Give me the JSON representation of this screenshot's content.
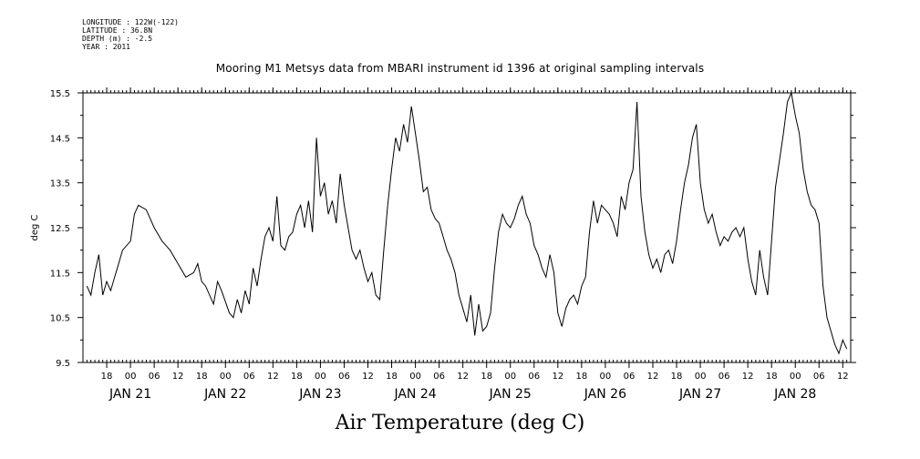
{
  "header": {
    "longitude": "LONGITUDE : 122W(-122)",
    "latitude": "LATITUDE : 36.8N",
    "depth": "DEPTH (m) : -2.5",
    "year": "YEAR : 2011"
  },
  "chart_title": "Mooring M1 Metsys data from MBARI instrument id 1396 at original sampling intervals",
  "footer_title": "Air Temperature (deg C)",
  "chart_data": {
    "type": "line",
    "title": "Mooring M1 Metsys data from MBARI instrument id 1396 at original sampling intervals",
    "xlabel": "Air Temperature (deg C)",
    "ylabel": "deg C",
    "ylim": [
      9.5,
      15.5
    ],
    "y_ticks": [
      "9.5",
      "10.5",
      "11.5",
      "12.5",
      "13.5",
      "14.5",
      "15.5"
    ],
    "x_start": "JAN 20 2011 12:00",
    "x_end": "JAN 28 2011 14:00",
    "hour_ticks": [
      {
        "t": "JAN 20 18:00",
        "label": "18"
      },
      {
        "t": "JAN 21 00:00",
        "label": "00"
      },
      {
        "t": "JAN 21 06:00",
        "label": "06"
      },
      {
        "t": "JAN 21 12:00",
        "label": "12"
      },
      {
        "t": "JAN 21 18:00",
        "label": "18"
      },
      {
        "t": "JAN 22 00:00",
        "label": "00"
      },
      {
        "t": "JAN 22 06:00",
        "label": "06"
      },
      {
        "t": "JAN 22 12:00",
        "label": "12"
      },
      {
        "t": "JAN 22 18:00",
        "label": "18"
      },
      {
        "t": "JAN 23 00:00",
        "label": "00"
      },
      {
        "t": "JAN 23 06:00",
        "label": "06"
      },
      {
        "t": "JAN 23 12:00",
        "label": "12"
      },
      {
        "t": "JAN 23 18:00",
        "label": "18"
      },
      {
        "t": "JAN 24 00:00",
        "label": "00"
      },
      {
        "t": "JAN 24 06:00",
        "label": "06"
      },
      {
        "t": "JAN 24 12:00",
        "label": "12"
      },
      {
        "t": "JAN 24 18:00",
        "label": "18"
      },
      {
        "t": "JAN 25 00:00",
        "label": "00"
      },
      {
        "t": "JAN 25 06:00",
        "label": "06"
      },
      {
        "t": "JAN 25 12:00",
        "label": "12"
      },
      {
        "t": "JAN 25 18:00",
        "label": "18"
      },
      {
        "t": "JAN 26 00:00",
        "label": "00"
      },
      {
        "t": "JAN 26 06:00",
        "label": "06"
      },
      {
        "t": "JAN 26 12:00",
        "label": "12"
      },
      {
        "t": "JAN 26 18:00",
        "label": "18"
      },
      {
        "t": "JAN 27 00:00",
        "label": "00"
      },
      {
        "t": "JAN 27 06:00",
        "label": "06"
      },
      {
        "t": "JAN 27 12:00",
        "label": "12"
      },
      {
        "t": "JAN 27 18:00",
        "label": "18"
      },
      {
        "t": "JAN 28 00:00",
        "label": "00"
      },
      {
        "t": "JAN 28 06:00",
        "label": "06"
      },
      {
        "t": "JAN 28 12:00",
        "label": "12"
      }
    ],
    "day_labels": [
      {
        "t": "JAN 21 00:00",
        "label": "JAN 21"
      },
      {
        "t": "JAN 22 00:00",
        "label": "JAN 22"
      },
      {
        "t": "JAN 23 00:00",
        "label": "JAN 23"
      },
      {
        "t": "JAN 24 00:00",
        "label": "JAN 24"
      },
      {
        "t": "JAN 25 00:00",
        "label": "JAN 25"
      },
      {
        "t": "JAN 26 00:00",
        "label": "JAN 26"
      },
      {
        "t": "JAN 27 00:00",
        "label": "JAN 27"
      },
      {
        "t": "JAN 28 00:00",
        "label": "JAN 28"
      }
    ],
    "series": [
      {
        "values": [
          [
            "JAN 20 13:00",
            11.2
          ],
          [
            "JAN 20 14:00",
            11.0
          ],
          [
            "JAN 20 15:00",
            11.5
          ],
          [
            "JAN 20 16:00",
            11.9
          ],
          [
            "JAN 20 17:00",
            11.0
          ],
          [
            "JAN 20 18:00",
            11.3
          ],
          [
            "JAN 20 19:00",
            11.1
          ],
          [
            "JAN 20 21:00",
            11.7
          ],
          [
            "JAN 20 22:00",
            12.0
          ],
          [
            "JAN 21 00:00",
            12.2
          ],
          [
            "JAN 21 01:00",
            12.8
          ],
          [
            "JAN 21 02:00",
            13.0
          ],
          [
            "JAN 21 04:00",
            12.9
          ],
          [
            "JAN 21 06:00",
            12.5
          ],
          [
            "JAN 21 08:00",
            12.2
          ],
          [
            "JAN 21 10:00",
            12.0
          ],
          [
            "JAN 21 12:00",
            11.7
          ],
          [
            "JAN 21 14:00",
            11.4
          ],
          [
            "JAN 21 16:00",
            11.5
          ],
          [
            "JAN 21 17:00",
            11.7
          ],
          [
            "JAN 21 18:00",
            11.3
          ],
          [
            "JAN 21 19:00",
            11.2
          ],
          [
            "JAN 21 21:00",
            10.8
          ],
          [
            "JAN 21 22:00",
            11.3
          ],
          [
            "JAN 21 23:00",
            11.1
          ],
          [
            "JAN 22 01:00",
            10.6
          ],
          [
            "JAN 22 02:00",
            10.5
          ],
          [
            "JAN 22 03:00",
            10.9
          ],
          [
            "JAN 22 04:00",
            10.6
          ],
          [
            "JAN 22 05:00",
            11.1
          ],
          [
            "JAN 22 06:00",
            10.8
          ],
          [
            "JAN 22 07:00",
            11.6
          ],
          [
            "JAN 22 08:00",
            11.2
          ],
          [
            "JAN 22 09:00",
            11.8
          ],
          [
            "JAN 22 10:00",
            12.3
          ],
          [
            "JAN 22 11:00",
            12.5
          ],
          [
            "JAN 22 12:00",
            12.2
          ],
          [
            "JAN 22 13:00",
            13.2
          ],
          [
            "JAN 22 14:00",
            12.1
          ],
          [
            "JAN 22 15:00",
            12.0
          ],
          [
            "JAN 22 16:00",
            12.3
          ],
          [
            "JAN 22 17:00",
            12.4
          ],
          [
            "JAN 22 18:00",
            12.8
          ],
          [
            "JAN 22 19:00",
            13.0
          ],
          [
            "JAN 22 20:00",
            12.5
          ],
          [
            "JAN 22 21:00",
            13.1
          ],
          [
            "JAN 22 22:00",
            12.4
          ],
          [
            "JAN 22 23:00",
            14.5
          ],
          [
            "JAN 23 00:00",
            13.2
          ],
          [
            "JAN 23 01:00",
            13.5
          ],
          [
            "JAN 23 02:00",
            12.8
          ],
          [
            "JAN 23 03:00",
            13.1
          ],
          [
            "JAN 23 04:00",
            12.6
          ],
          [
            "JAN 23 05:00",
            13.7
          ],
          [
            "JAN 23 06:00",
            13.0
          ],
          [
            "JAN 23 07:00",
            12.5
          ],
          [
            "JAN 23 08:00",
            12.0
          ],
          [
            "JAN 23 09:00",
            11.8
          ],
          [
            "JAN 23 10:00",
            12.0
          ],
          [
            "JAN 23 11:00",
            11.6
          ],
          [
            "JAN 23 12:00",
            11.3
          ],
          [
            "JAN 23 13:00",
            11.5
          ],
          [
            "JAN 23 14:00",
            11.0
          ],
          [
            "JAN 23 15:00",
            10.9
          ],
          [
            "JAN 23 16:00",
            12.0
          ],
          [
            "JAN 23 17:00",
            13.0
          ],
          [
            "JAN 23 18:00",
            13.8
          ],
          [
            "JAN 23 19:00",
            14.5
          ],
          [
            "JAN 23 20:00",
            14.2
          ],
          [
            "JAN 23 21:00",
            14.8
          ],
          [
            "JAN 23 22:00",
            14.4
          ],
          [
            "JAN 23 23:00",
            15.2
          ],
          [
            "JAN 24 00:00",
            14.6
          ],
          [
            "JAN 24 01:00",
            14.0
          ],
          [
            "JAN 24 02:00",
            13.3
          ],
          [
            "JAN 24 03:00",
            13.4
          ],
          [
            "JAN 24 04:00",
            12.9
          ],
          [
            "JAN 24 05:00",
            12.7
          ],
          [
            "JAN 24 06:00",
            12.6
          ],
          [
            "JAN 24 07:00",
            12.3
          ],
          [
            "JAN 24 08:00",
            12.0
          ],
          [
            "JAN 24 09:00",
            11.8
          ],
          [
            "JAN 24 10:00",
            11.5
          ],
          [
            "JAN 24 11:00",
            11.0
          ],
          [
            "JAN 24 12:00",
            10.7
          ],
          [
            "JAN 24 13:00",
            10.4
          ],
          [
            "JAN 24 14:00",
            11.0
          ],
          [
            "JAN 24 15:00",
            10.1
          ],
          [
            "JAN 24 16:00",
            10.8
          ],
          [
            "JAN 24 17:00",
            10.2
          ],
          [
            "JAN 24 18:00",
            10.3
          ],
          [
            "JAN 24 19:00",
            10.6
          ],
          [
            "JAN 24 20:00",
            11.6
          ],
          [
            "JAN 24 21:00",
            12.4
          ],
          [
            "JAN 24 22:00",
            12.8
          ],
          [
            "JAN 24 23:00",
            12.6
          ],
          [
            "JAN 25 00:00",
            12.5
          ],
          [
            "JAN 25 01:00",
            12.7
          ],
          [
            "JAN 25 02:00",
            13.0
          ],
          [
            "JAN 25 03:00",
            13.2
          ],
          [
            "JAN 25 04:00",
            12.8
          ],
          [
            "JAN 25 05:00",
            12.6
          ],
          [
            "JAN 25 06:00",
            12.1
          ],
          [
            "JAN 25 07:00",
            11.9
          ],
          [
            "JAN 25 08:00",
            11.6
          ],
          [
            "JAN 25 09:00",
            11.4
          ],
          [
            "JAN 25 10:00",
            11.9
          ],
          [
            "JAN 25 11:00",
            11.5
          ],
          [
            "JAN 25 12:00",
            10.6
          ],
          [
            "JAN 25 13:00",
            10.3
          ],
          [
            "JAN 25 14:00",
            10.7
          ],
          [
            "JAN 25 15:00",
            10.9
          ],
          [
            "JAN 25 16:00",
            11.0
          ],
          [
            "JAN 25 17:00",
            10.8
          ],
          [
            "JAN 25 18:00",
            11.2
          ],
          [
            "JAN 25 19:00",
            11.4
          ],
          [
            "JAN 25 20:00",
            12.4
          ],
          [
            "JAN 25 21:00",
            13.1
          ],
          [
            "JAN 25 22:00",
            12.6
          ],
          [
            "JAN 25 23:00",
            13.0
          ],
          [
            "JAN 26 00:00",
            12.9
          ],
          [
            "JAN 26 01:00",
            12.8
          ],
          [
            "JAN 26 02:00",
            12.6
          ],
          [
            "JAN 26 03:00",
            12.3
          ],
          [
            "JAN 26 04:00",
            13.2
          ],
          [
            "JAN 26 05:00",
            12.9
          ],
          [
            "JAN 26 06:00",
            13.5
          ],
          [
            "JAN 26 07:00",
            13.8
          ],
          [
            "JAN 26 08:00",
            15.3
          ],
          [
            "JAN 26 09:00",
            13.2
          ],
          [
            "JAN 26 10:00",
            12.4
          ],
          [
            "JAN 26 11:00",
            11.9
          ],
          [
            "JAN 26 12:00",
            11.6
          ],
          [
            "JAN 26 13:00",
            11.8
          ],
          [
            "JAN 26 14:00",
            11.5
          ],
          [
            "JAN 26 15:00",
            11.9
          ],
          [
            "JAN 26 16:00",
            12.0
          ],
          [
            "JAN 26 17:00",
            11.7
          ],
          [
            "JAN 26 18:00",
            12.2
          ],
          [
            "JAN 26 19:00",
            12.9
          ],
          [
            "JAN 26 20:00",
            13.5
          ],
          [
            "JAN 26 21:00",
            13.9
          ],
          [
            "JAN 26 22:00",
            14.5
          ],
          [
            "JAN 26 23:00",
            14.8
          ],
          [
            "JAN 27 00:00",
            13.5
          ],
          [
            "JAN 27 01:00",
            12.9
          ],
          [
            "JAN 27 02:00",
            12.6
          ],
          [
            "JAN 27 03:00",
            12.8
          ],
          [
            "JAN 27 04:00",
            12.4
          ],
          [
            "JAN 27 05:00",
            12.1
          ],
          [
            "JAN 27 06:00",
            12.3
          ],
          [
            "JAN 27 07:00",
            12.2
          ],
          [
            "JAN 27 08:00",
            12.4
          ],
          [
            "JAN 27 09:00",
            12.5
          ],
          [
            "JAN 27 10:00",
            12.3
          ],
          [
            "JAN 27 11:00",
            12.5
          ],
          [
            "JAN 27 12:00",
            11.8
          ],
          [
            "JAN 27 13:00",
            11.3
          ],
          [
            "JAN 27 14:00",
            11.0
          ],
          [
            "JAN 27 15:00",
            12.0
          ],
          [
            "JAN 27 16:00",
            11.4
          ],
          [
            "JAN 27 17:00",
            11.0
          ],
          [
            "JAN 27 18:00",
            12.2
          ],
          [
            "JAN 27 19:00",
            13.4
          ],
          [
            "JAN 27 20:00",
            14.0
          ],
          [
            "JAN 27 21:00",
            14.6
          ],
          [
            "JAN 27 22:00",
            15.3
          ],
          [
            "JAN 27 23:00",
            15.5
          ],
          [
            "JAN 28 00:00",
            15.0
          ],
          [
            "JAN 28 01:00",
            14.6
          ],
          [
            "JAN 28 02:00",
            13.8
          ],
          [
            "JAN 28 03:00",
            13.3
          ],
          [
            "JAN 28 04:00",
            13.0
          ],
          [
            "JAN 28 05:00",
            12.9
          ],
          [
            "JAN 28 06:00",
            12.6
          ],
          [
            "JAN 28 07:00",
            11.2
          ],
          [
            "JAN 28 08:00",
            10.5
          ],
          [
            "JAN 28 09:00",
            10.2
          ],
          [
            "JAN 28 10:00",
            9.9
          ],
          [
            "JAN 28 11:00",
            9.7
          ],
          [
            "JAN 28 12:00",
            10.0
          ],
          [
            "JAN 28 13:00",
            9.8
          ]
        ]
      }
    ]
  }
}
